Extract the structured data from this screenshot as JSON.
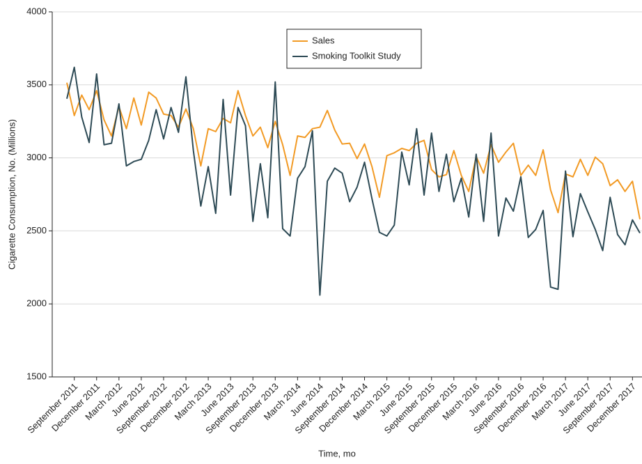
{
  "chart_data": {
    "type": "line",
    "xlabel": "Time, mo",
    "ylabel": "Cigarette Consumption, No. (Millions)",
    "categories": [
      null,
      "September 2011",
      null,
      null,
      "December 2011",
      null,
      null,
      "March 2012",
      null,
      null,
      "June 2012",
      null,
      null,
      "September 2012",
      null,
      null,
      "December 2012",
      null,
      null,
      "March 2013",
      null,
      null,
      "June 2013",
      null,
      null,
      "September 2013",
      null,
      null,
      "December 2013",
      null,
      null,
      "March 2014",
      null,
      null,
      "June 2014",
      null,
      null,
      "September 2014",
      null,
      null,
      "December 2014",
      null,
      null,
      "March 2015",
      null,
      null,
      "June 2015",
      null,
      null,
      "September 2015",
      null,
      null,
      "December 2015",
      null,
      null,
      "March 2016",
      null,
      null,
      "June 2016",
      null,
      null,
      "September 2016",
      null,
      null,
      "December 2016",
      null,
      null,
      "March 2017",
      null,
      null,
      "June 2017",
      null,
      null,
      "September 2017",
      null,
      null,
      "December 2017",
      null
    ],
    "series": [
      {
        "name": "Sales",
        "color": "#f29a24",
        "values": [
          3515,
          3290,
          3430,
          3330,
          3460,
          3260,
          3150,
          3350,
          3200,
          3410,
          3225,
          3450,
          3410,
          3300,
          3290,
          3210,
          3335,
          3200,
          2945,
          3200,
          3180,
          3270,
          3240,
          3460,
          3290,
          3150,
          3210,
          3070,
          3250,
          3090,
          2880,
          3150,
          3140,
          3200,
          3210,
          3325,
          3190,
          3095,
          3100,
          2995,
          3095,
          2940,
          2730,
          3015,
          3035,
          3065,
          3050,
          3100,
          3120,
          2920,
          2870,
          2885,
          3050,
          2880,
          2770,
          3010,
          2895,
          3090,
          2970,
          3040,
          3100,
          2880,
          2950,
          2880,
          3055,
          2780,
          2625,
          2890,
          2870,
          2990,
          2880,
          3005,
          2960,
          2810,
          2850,
          2770,
          2840,
          2580
        ]
      },
      {
        "name": "Smoking Toolkit Study",
        "color": "#2d4a55",
        "values": [
          3405,
          3620,
          3280,
          3105,
          3575,
          3090,
          3100,
          3370,
          2945,
          2975,
          2990,
          3120,
          3330,
          3130,
          3345,
          3175,
          3555,
          3050,
          2670,
          2940,
          2620,
          3400,
          2745,
          3345,
          3220,
          2565,
          2960,
          2590,
          3520,
          2515,
          2465,
          2860,
          2940,
          3185,
          2060,
          2840,
          2930,
          2895,
          2700,
          2800,
          2970,
          2720,
          2490,
          2465,
          2540,
          3040,
          2815,
          3200,
          2745,
          3170,
          2770,
          3025,
          2700,
          2860,
          2595,
          3025,
          2565,
          3170,
          2465,
          2725,
          2635,
          2870,
          2455,
          2510,
          2640,
          2115,
          2100,
          2910,
          2460,
          2755,
          2630,
          2510,
          2365,
          2730,
          2475,
          2405,
          2575,
          2485
        ]
      }
    ],
    "ylim": [
      1500,
      4000
    ],
    "yticks": [
      1500,
      2000,
      2500,
      3000,
      3500,
      4000
    ],
    "grid": true,
    "legend": "top"
  }
}
